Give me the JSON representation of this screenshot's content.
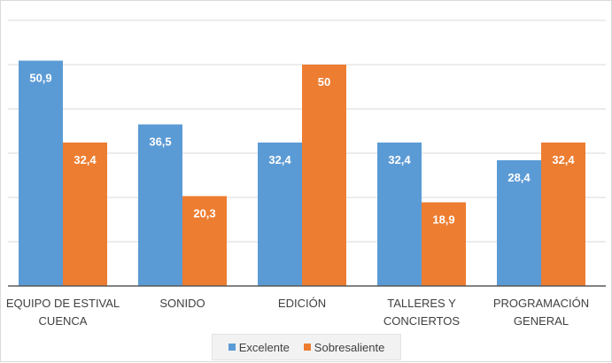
{
  "chart_data": {
    "type": "bar",
    "categories": [
      [
        "EQUIPO DE ESTIVAL",
        "CUENCA"
      ],
      [
        "SONIDO"
      ],
      [
        "EDICIÓN"
      ],
      [
        "TALLERES Y",
        "CONCIERTOS"
      ],
      [
        "PROGRAMACIÓN",
        "GENERAL"
      ]
    ],
    "series": [
      {
        "name": "Excelente",
        "color": "#5b9bd5",
        "values": [
          50.9,
          36.5,
          32.4,
          32.4,
          28.4
        ],
        "labels": [
          "50,9",
          "36,5",
          "32,4",
          "32,4",
          "28,4"
        ]
      },
      {
        "name": "Sobresaliente",
        "color": "#ed7d31",
        "values": [
          32.4,
          20.3,
          50,
          18.9,
          32.4
        ],
        "labels": [
          "32,4",
          "20,3",
          "50",
          "18,9",
          "32,4"
        ]
      }
    ],
    "ylim": [
      0,
      60
    ],
    "y_gridline_step": 10,
    "grid": true,
    "legend": "bottom"
  }
}
